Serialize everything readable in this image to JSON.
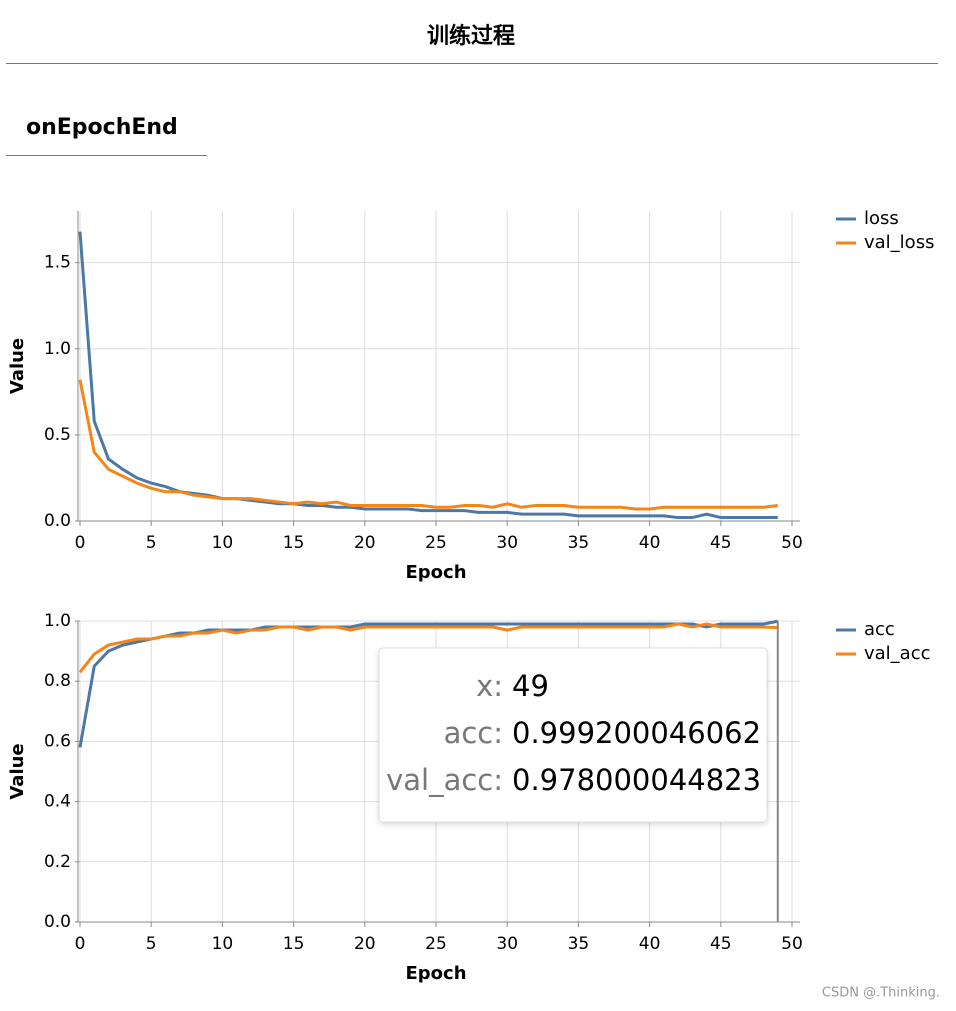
{
  "header": {
    "title": "训练过程"
  },
  "section": {
    "title": "onEpochEnd"
  },
  "watermark": "CSDN @.Thinking.",
  "chart_data": [
    {
      "type": "line",
      "x_label": "Epoch",
      "y_label": "Value",
      "x": [
        0,
        1,
        2,
        3,
        4,
        5,
        6,
        7,
        8,
        9,
        10,
        11,
        12,
        13,
        14,
        15,
        16,
        17,
        18,
        19,
        20,
        21,
        22,
        23,
        24,
        25,
        26,
        27,
        28,
        29,
        30,
        31,
        32,
        33,
        34,
        35,
        36,
        37,
        38,
        39,
        40,
        41,
        42,
        43,
        44,
        45,
        46,
        47,
        48,
        49
      ],
      "series": [
        {
          "name": "loss",
          "color": "#4c78a8",
          "values": [
            1.68,
            0.58,
            0.36,
            0.3,
            0.25,
            0.22,
            0.2,
            0.17,
            0.16,
            0.15,
            0.13,
            0.13,
            0.12,
            0.11,
            0.1,
            0.1,
            0.09,
            0.09,
            0.08,
            0.08,
            0.07,
            0.07,
            0.07,
            0.07,
            0.06,
            0.06,
            0.06,
            0.06,
            0.05,
            0.05,
            0.05,
            0.04,
            0.04,
            0.04,
            0.04,
            0.03,
            0.03,
            0.03,
            0.03,
            0.03,
            0.03,
            0.03,
            0.02,
            0.02,
            0.04,
            0.02,
            0.02,
            0.02,
            0.02,
            0.02
          ]
        },
        {
          "name": "val_loss",
          "color": "#f58518",
          "values": [
            0.82,
            0.4,
            0.3,
            0.26,
            0.22,
            0.19,
            0.17,
            0.17,
            0.15,
            0.14,
            0.13,
            0.13,
            0.13,
            0.12,
            0.11,
            0.1,
            0.11,
            0.1,
            0.11,
            0.09,
            0.09,
            0.09,
            0.09,
            0.09,
            0.09,
            0.08,
            0.08,
            0.09,
            0.09,
            0.08,
            0.1,
            0.08,
            0.09,
            0.09,
            0.09,
            0.08,
            0.08,
            0.08,
            0.08,
            0.07,
            0.07,
            0.08,
            0.08,
            0.08,
            0.08,
            0.08,
            0.08,
            0.08,
            0.08,
            0.09
          ]
        }
      ],
      "xlim": [
        0,
        50
      ],
      "xticks": [
        0,
        5,
        10,
        15,
        20,
        25,
        30,
        35,
        40,
        45,
        50
      ],
      "ylim": [
        0,
        1.8
      ],
      "yticks": [
        {
          "value": 0,
          "label": "0.0"
        },
        0.5,
        {
          "value": 1,
          "label": "1.0"
        },
        1.5
      ],
      "grid": true
    },
    {
      "type": "line",
      "x_label": "Epoch",
      "y_label": "Value",
      "x": [
        0,
        1,
        2,
        3,
        4,
        5,
        6,
        7,
        8,
        9,
        10,
        11,
        12,
        13,
        14,
        15,
        16,
        17,
        18,
        19,
        20,
        21,
        22,
        23,
        24,
        25,
        26,
        27,
        28,
        29,
        30,
        31,
        32,
        33,
        34,
        35,
        36,
        37,
        38,
        39,
        40,
        41,
        42,
        43,
        44,
        45,
        46,
        47,
        48,
        49
      ],
      "series": [
        {
          "name": "acc",
          "color": "#4c78a8",
          "values": [
            0.58,
            0.85,
            0.9,
            0.92,
            0.93,
            0.94,
            0.95,
            0.96,
            0.96,
            0.97,
            0.97,
            0.97,
            0.97,
            0.98,
            0.98,
            0.98,
            0.98,
            0.98,
            0.98,
            0.98,
            0.99,
            0.99,
            0.99,
            0.99,
            0.99,
            0.99,
            0.99,
            0.99,
            0.99,
            0.99,
            0.99,
            0.99,
            0.99,
            0.99,
            0.99,
            0.99,
            0.99,
            0.99,
            0.99,
            0.99,
            0.99,
            0.99,
            0.99,
            0.99,
            0.98,
            0.99,
            0.99,
            0.99,
            0.99,
            0.999200046062
          ]
        },
        {
          "name": "val_acc",
          "color": "#f58518",
          "values": [
            0.83,
            0.89,
            0.92,
            0.93,
            0.94,
            0.94,
            0.95,
            0.95,
            0.96,
            0.96,
            0.97,
            0.96,
            0.97,
            0.97,
            0.98,
            0.98,
            0.97,
            0.98,
            0.98,
            0.97,
            0.98,
            0.98,
            0.98,
            0.98,
            0.98,
            0.98,
            0.98,
            0.98,
            0.98,
            0.98,
            0.97,
            0.98,
            0.98,
            0.98,
            0.98,
            0.98,
            0.98,
            0.98,
            0.98,
            0.98,
            0.98,
            0.98,
            0.99,
            0.98,
            0.99,
            0.98,
            0.98,
            0.98,
            0.98,
            0.978000044823
          ]
        }
      ],
      "xlim": [
        0,
        50
      ],
      "xticks": [
        0,
        5,
        10,
        15,
        20,
        25,
        30,
        35,
        40,
        45,
        50
      ],
      "ylim": [
        0,
        1
      ],
      "yticks": [
        {
          "value": 0,
          "label": "0.0"
        },
        0.2,
        0.4,
        0.6,
        0.8,
        {
          "value": 1,
          "label": "1.0"
        }
      ],
      "grid": true,
      "tooltip": {
        "x_label": "x:",
        "x": 49,
        "rows": [
          {
            "label": "acc:",
            "value": 0.999200046062
          },
          {
            "label": "val_acc:",
            "value": 0.978000044823
          }
        ]
      }
    }
  ]
}
